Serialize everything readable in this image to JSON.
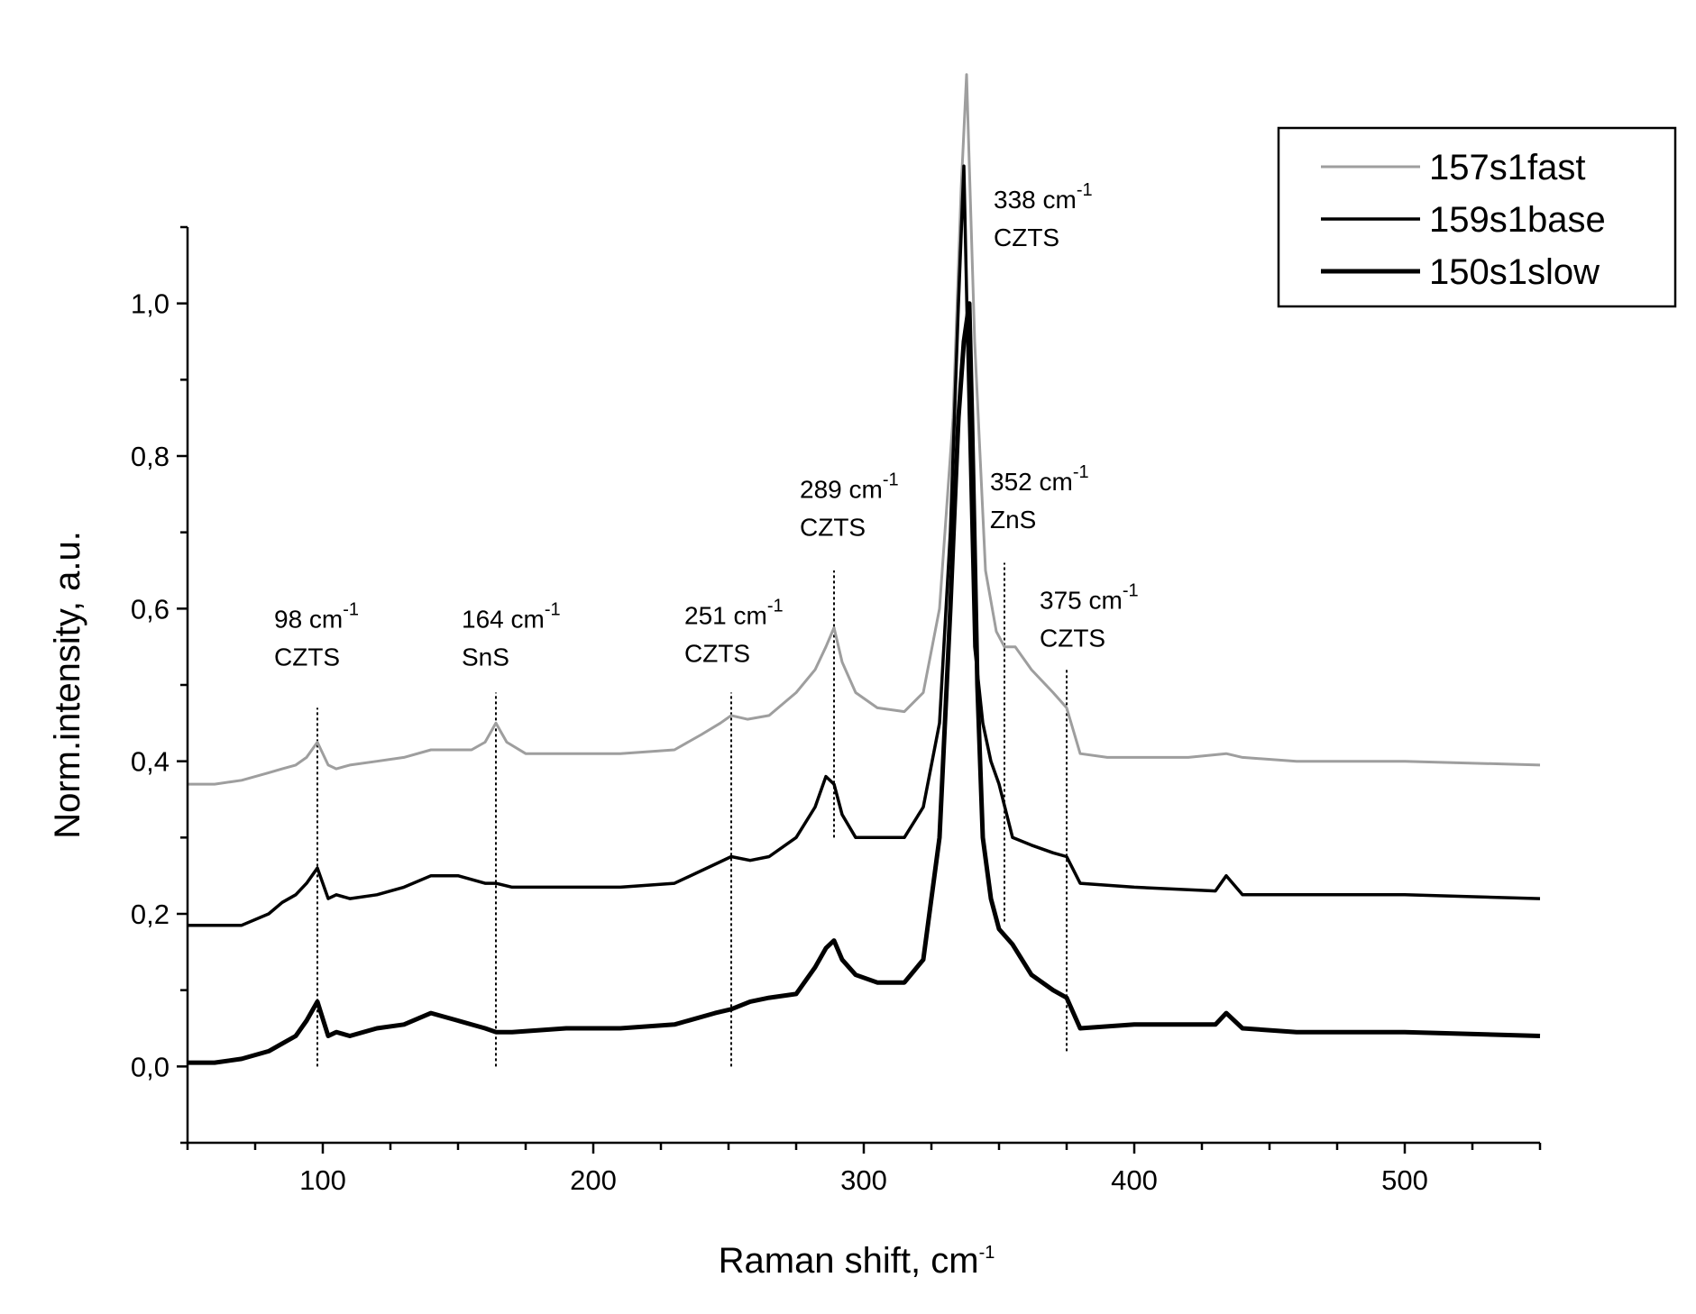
{
  "chart_data": {
    "type": "line",
    "title": "",
    "xlabel": "Raman shift, cm",
    "xlabel_sup": "-1",
    "ylabel": "Norm.intensity, a.u.",
    "xlim": [
      50,
      550
    ],
    "ylim": [
      -0.1,
      1.1
    ],
    "x_ticks": [
      100,
      200,
      300,
      400,
      500
    ],
    "x_tick_labels": [
      "100",
      "200",
      "300",
      "400",
      "500"
    ],
    "y_ticks": [
      0.0,
      0.2,
      0.4,
      0.6,
      0.8,
      1.0
    ],
    "y_tick_labels": [
      "0,0",
      "0,2",
      "0,4",
      "0,6",
      "0,8",
      "1,0"
    ],
    "grid": false,
    "legend_position": "top-right",
    "series": [
      {
        "name": "157s1fast",
        "color": "#9e9e9e",
        "line_width": "thin",
        "x": [
          50,
          60,
          70,
          80,
          85,
          90,
          94,
          98,
          102,
          105,
          110,
          120,
          130,
          140,
          150,
          155,
          160,
          164,
          168,
          175,
          190,
          210,
          230,
          240,
          247,
          251,
          257,
          265,
          275,
          282,
          286,
          289,
          292,
          297,
          305,
          315,
          322,
          328,
          333,
          336,
          338,
          341,
          345,
          349,
          352,
          356,
          362,
          370,
          375,
          380,
          390,
          420,
          434,
          440,
          460,
          500,
          550
        ],
        "y": [
          0.37,
          0.37,
          0.375,
          0.385,
          0.39,
          0.395,
          0.405,
          0.425,
          0.395,
          0.39,
          0.395,
          0.4,
          0.405,
          0.415,
          0.415,
          0.415,
          0.425,
          0.45,
          0.425,
          0.41,
          0.41,
          0.41,
          0.415,
          0.435,
          0.45,
          0.46,
          0.455,
          0.46,
          0.49,
          0.52,
          0.55,
          0.575,
          0.53,
          0.49,
          0.47,
          0.465,
          0.49,
          0.6,
          0.85,
          1.15,
          1.3,
          0.95,
          0.65,
          0.57,
          0.55,
          0.55,
          0.52,
          0.49,
          0.47,
          0.41,
          0.405,
          0.405,
          0.41,
          0.405,
          0.4,
          0.4,
          0.395
        ]
      },
      {
        "name": "159s1base",
        "color": "#000000",
        "line_width": "medium",
        "x": [
          50,
          60,
          70,
          80,
          85,
          90,
          94,
          98,
          102,
          105,
          110,
          120,
          130,
          140,
          150,
          160,
          164,
          170,
          190,
          210,
          230,
          245,
          251,
          258,
          265,
          275,
          282,
          286,
          289,
          292,
          297,
          305,
          315,
          322,
          328,
          332,
          335,
          337,
          339,
          341,
          344,
          347,
          350,
          355,
          362,
          370,
          375,
          380,
          400,
          430,
          434,
          440,
          460,
          500,
          550
        ],
        "y": [
          0.185,
          0.185,
          0.185,
          0.2,
          0.215,
          0.225,
          0.24,
          0.26,
          0.22,
          0.225,
          0.22,
          0.225,
          0.235,
          0.25,
          0.25,
          0.24,
          0.24,
          0.235,
          0.235,
          0.235,
          0.24,
          0.265,
          0.275,
          0.27,
          0.275,
          0.3,
          0.34,
          0.38,
          0.37,
          0.33,
          0.3,
          0.3,
          0.3,
          0.34,
          0.45,
          0.7,
          1.0,
          1.18,
          0.85,
          0.55,
          0.45,
          0.4,
          0.37,
          0.3,
          0.29,
          0.28,
          0.275,
          0.24,
          0.235,
          0.23,
          0.25,
          0.225,
          0.225,
          0.225,
          0.22
        ]
      },
      {
        "name": "150s1slow",
        "color": "#000000",
        "line_width": "thick",
        "x": [
          50,
          60,
          70,
          80,
          85,
          90,
          94,
          98,
          102,
          105,
          110,
          120,
          130,
          140,
          150,
          160,
          164,
          170,
          190,
          210,
          230,
          245,
          251,
          258,
          265,
          275,
          282,
          286,
          289,
          292,
          297,
          305,
          315,
          322,
          328,
          332,
          335,
          337,
          339,
          340,
          342,
          344,
          347,
          350,
          355,
          362,
          370,
          375,
          380,
          400,
          430,
          434,
          440,
          460,
          500,
          550
        ],
        "y": [
          0.005,
          0.005,
          0.01,
          0.02,
          0.03,
          0.04,
          0.06,
          0.085,
          0.04,
          0.045,
          0.04,
          0.05,
          0.055,
          0.07,
          0.06,
          0.05,
          0.045,
          0.045,
          0.05,
          0.05,
          0.055,
          0.07,
          0.075,
          0.085,
          0.09,
          0.095,
          0.13,
          0.155,
          0.165,
          0.14,
          0.12,
          0.11,
          0.11,
          0.14,
          0.3,
          0.6,
          0.85,
          0.95,
          1.0,
          0.85,
          0.5,
          0.3,
          0.22,
          0.18,
          0.16,
          0.12,
          0.1,
          0.09,
          0.05,
          0.055,
          0.055,
          0.07,
          0.05,
          0.045,
          0.045,
          0.04
        ]
      }
    ],
    "annotations": [
      {
        "x": 98,
        "line_from": 0.0,
        "line_to": 0.47,
        "label": "98 cm",
        "sup": "-1",
        "material": "CZTS",
        "label_y": 0.575
      },
      {
        "x": 164,
        "line_from": 0.0,
        "line_to": 0.49,
        "label": "164 cm",
        "sup": "-1",
        "material": "SnS",
        "label_y": 0.575
      },
      {
        "x": 251,
        "line_from": 0.0,
        "line_to": 0.49,
        "label": "251 cm",
        "sup": "-1",
        "material": "CZTS",
        "label_y": 0.58
      },
      {
        "x": 289,
        "line_from": 0.3,
        "line_to": 0.65,
        "label": "289 cm",
        "sup": "-1",
        "material": "CZTS",
        "label_y": 0.745
      },
      {
        "x": 338,
        "line_from": null,
        "line_to": null,
        "label": "338 cm",
        "sup": "-1",
        "material": "CZTS",
        "label_y": 1.125
      },
      {
        "x": 352,
        "line_from": 0.19,
        "line_to": 0.66,
        "label": "352 cm",
        "sup": "-1",
        "material": "ZnS",
        "label_y": 0.755
      },
      {
        "x": 375,
        "line_from": 0.02,
        "line_to": 0.52,
        "label": "375 cm",
        "sup": "-1",
        "material": "CZTS",
        "label_y": 0.6
      }
    ]
  }
}
